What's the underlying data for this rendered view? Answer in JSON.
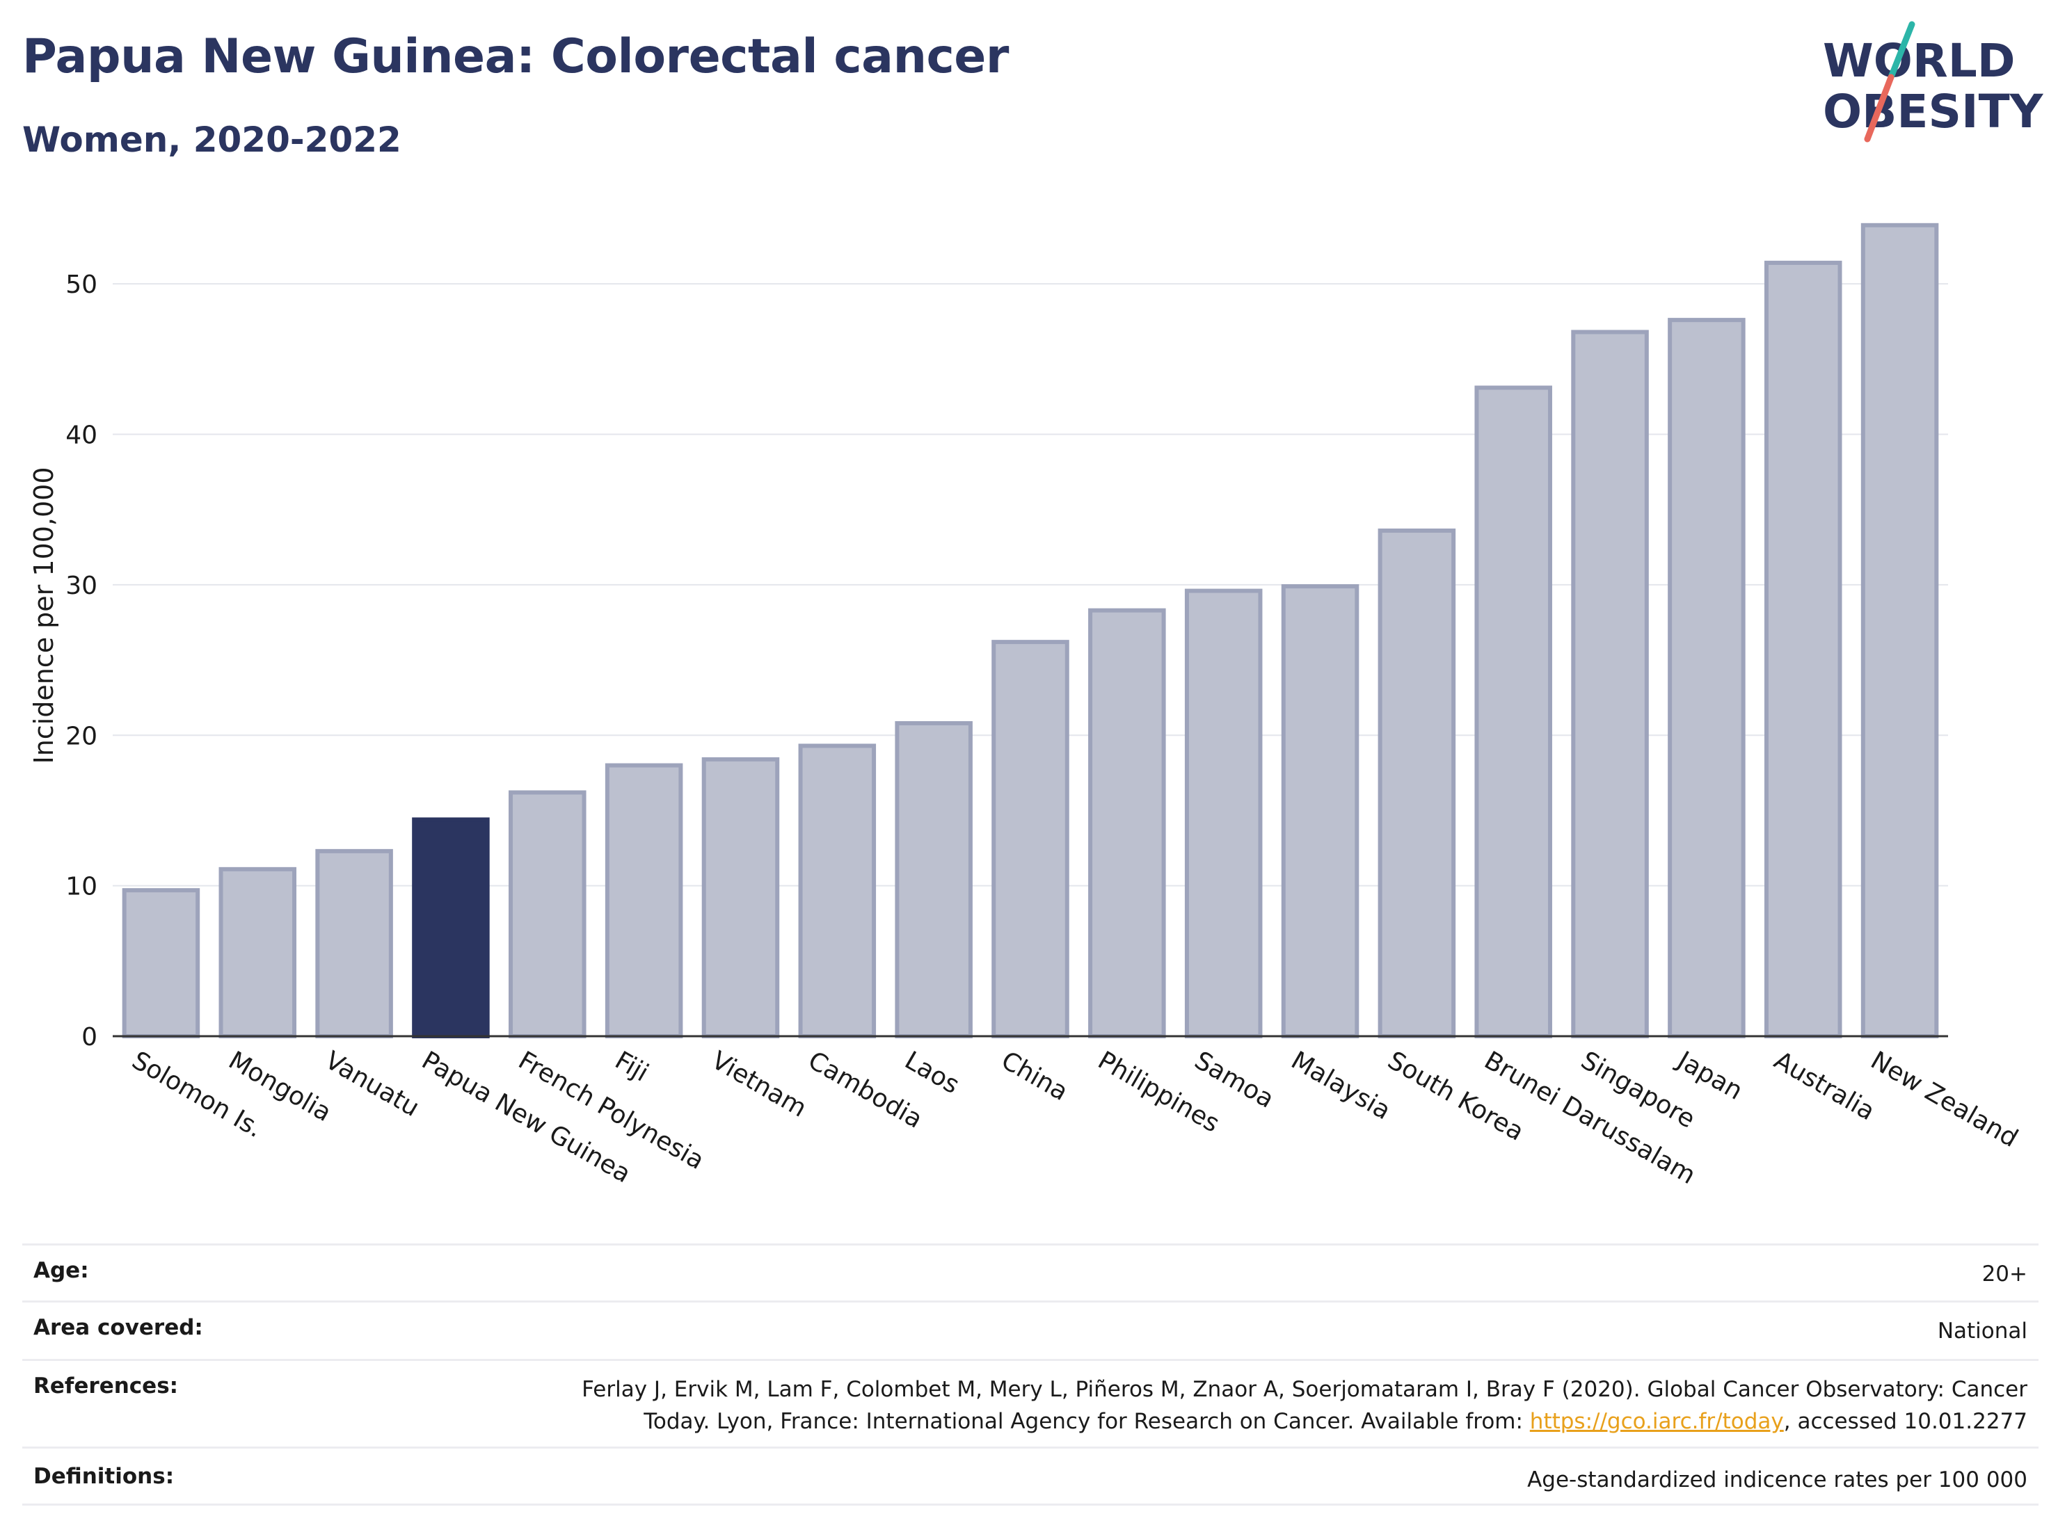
{
  "header": {
    "title": "Papua New Guinea: Colorectal cancer",
    "subtitle": "Women, 2020-2022"
  },
  "logo": {
    "line1": "WORLD",
    "line2": "OBESITY",
    "icon": "world-obesity-logo"
  },
  "chart_data": {
    "type": "bar",
    "title": "Papua New Guinea: Colorectal cancer",
    "subtitle": "Women, 2020-2022",
    "xlabel": "",
    "ylabel": "Incidence per 100,000",
    "ylim": [
      0,
      55
    ],
    "yticks": [
      0,
      10,
      20,
      30,
      40,
      50
    ],
    "grid": true,
    "highlight": "Papua New Guinea",
    "highlight_color": "#2b3560",
    "bar_color": "#bcc0cf",
    "bar_edge_color": "#9da3bb",
    "categories": [
      "Solomon Is.",
      "Mongolia",
      "Vanuatu",
      "Papua New Guinea",
      "French Polynesia",
      "Fiji",
      "Vietnam",
      "Cambodia",
      "Laos",
      "China",
      "Philippines",
      "Samoa",
      "Malaysia",
      "South Korea",
      "Brunei Darussalam",
      "Singapore",
      "Japan",
      "Australia",
      "New Zealand"
    ],
    "values": [
      9.7,
      11.1,
      12.3,
      14.4,
      16.2,
      18.0,
      18.4,
      19.3,
      20.8,
      26.2,
      28.3,
      29.6,
      29.9,
      33.6,
      43.1,
      46.8,
      47.6,
      51.4,
      53.9
    ]
  },
  "meta": {
    "age": {
      "label": "Age:",
      "value": "20+"
    },
    "area": {
      "label": "Area covered:",
      "value": "National"
    },
    "references": {
      "label": "References:",
      "line1": "Ferlay J, Ervik M, Lam F, Colombet M, Mery L, Piñeros M, Znaor A, Soerjomataram I, Bray F (2020). Global Cancer Observatory: Cancer",
      "line2_pre": "Today. Lyon, France: International Agency for Research on Cancer. Available from: ",
      "link": "https://gco.iarc.fr/today",
      "line2_post": ", accessed 10.01.2277"
    },
    "definitions": {
      "label": "Definitions:",
      "value": "Age-standardized indicence rates per 100 000"
    }
  }
}
